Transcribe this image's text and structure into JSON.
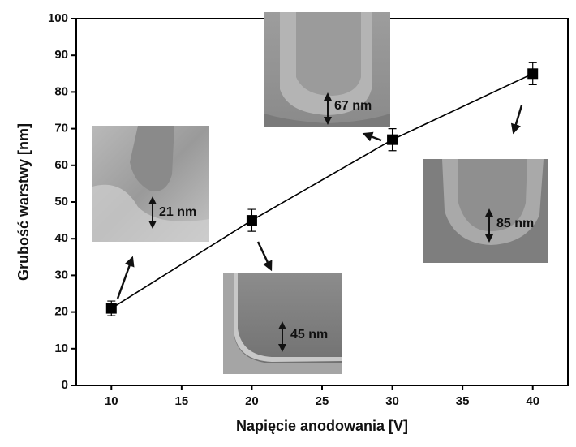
{
  "chart_data": {
    "type": "line",
    "x_label": "Napięcie anodowania  [V]",
    "y_label": "Grubość warstwy [nm]",
    "x": [
      10,
      20,
      30,
      40
    ],
    "series": [
      {
        "color": "#000000",
        "values": [
          21,
          45,
          67,
          85
        ],
        "errors": [
          2,
          3,
          3,
          3
        ]
      }
    ],
    "xlim": [
      7.5,
      42.5
    ],
    "xticks": [
      10,
      15,
      20,
      25,
      30,
      35,
      40
    ],
    "ylim": [
      0,
      100
    ],
    "yticks": [
      0,
      10,
      20,
      30,
      40,
      50,
      60,
      70,
      80,
      90,
      100
    ],
    "annotations": [
      "21 nm",
      "45 nm",
      "67 nm",
      "85 nm"
    ]
  }
}
